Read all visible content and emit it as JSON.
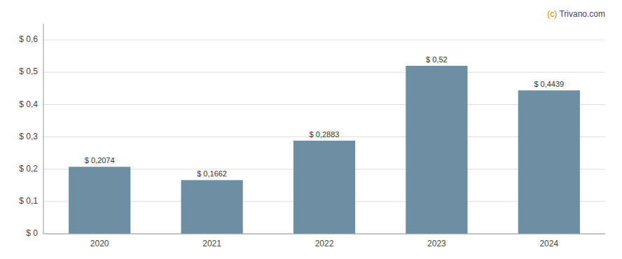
{
  "chart_data": {
    "type": "bar",
    "categories": [
      "2020",
      "2021",
      "2022",
      "2023",
      "2024"
    ],
    "values": [
      0.2074,
      0.1662,
      0.2883,
      0.52,
      0.4439
    ],
    "value_labels": [
      "$ 0,2074",
      "$ 0,1662",
      "$ 0,2883",
      "$ 0,52",
      "$ 0,4439"
    ],
    "color": "#6e8fa3",
    "ylim": [
      0,
      0.65
    ],
    "yticks": [
      {
        "value": 0.0,
        "label": "$ 0"
      },
      {
        "value": 0.1,
        "label": "$ 0,1"
      },
      {
        "value": 0.2,
        "label": "$ 0,2"
      },
      {
        "value": 0.3,
        "label": "$ 0,3"
      },
      {
        "value": 0.4,
        "label": "$ 0,4"
      },
      {
        "value": 0.5,
        "label": "$ 0,5"
      },
      {
        "value": 0.6,
        "label": "$ 0,6"
      }
    ],
    "grid": true,
    "data_labels": true,
    "annotations": [
      {
        "text": "(c) ",
        "color": "#cc8800"
      },
      {
        "text": "Trivano.com",
        "color": "#444466"
      }
    ]
  }
}
